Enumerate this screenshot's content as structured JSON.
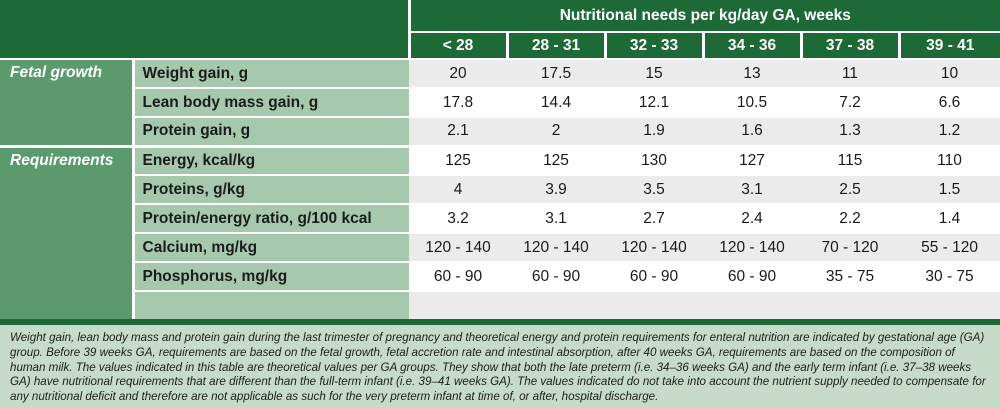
{
  "header": {
    "title": "Nutritional needs per kg/day GA, weeks",
    "columns": [
      "< 28",
      "28 - 31",
      "32 - 33",
      "34 - 36",
      "37 - 38",
      "39 - 41"
    ]
  },
  "groups": {
    "fetal": "Fetal growth",
    "requirements": "Requirements"
  },
  "rows": [
    {
      "label": "Weight gain, g",
      "values": [
        "20",
        "17.5",
        "15",
        "13",
        "11",
        "10"
      ]
    },
    {
      "label": "Lean body mass gain, g",
      "values": [
        "17.8",
        "14.4",
        "12.1",
        "10.5",
        "7.2",
        "6.6"
      ]
    },
    {
      "label": "Protein gain, g",
      "values": [
        "2.1",
        "2",
        "1.9",
        "1.6",
        "1.3",
        "1.2"
      ]
    },
    {
      "label": "Energy, kcal/kg",
      "values": [
        "125",
        "125",
        "130",
        "127",
        "115",
        "110"
      ]
    },
    {
      "label": "Proteins, g/kg",
      "values": [
        "4",
        "3.9",
        "3.5",
        "3.1",
        "2.5",
        "1.5"
      ]
    },
    {
      "label": "Protein/energy ratio, g/100 kcal",
      "values": [
        "3.2",
        "3.1",
        "2.7",
        "2.4",
        "2.2",
        "1.4"
      ]
    },
    {
      "label": "Calcium, mg/kg",
      "values": [
        "120 - 140",
        "120 - 140",
        "120 - 140",
        "120 - 140",
        "70 - 120",
        "55 - 120"
      ]
    },
    {
      "label": "Phosphorus, mg/kg",
      "values": [
        "60 - 90",
        "60 - 90",
        "60 - 90",
        "60 - 90",
        "35 - 75",
        "30 - 75"
      ]
    }
  ],
  "footnote": "Weight gain, lean body mass and protein gain during the last trimester of pregnancy and theoretical energy and protein requirements for enteral nutrition are indicated by gestational age (GA) group. Before 39 weeks GA, requirements are based on the fetal growth, fetal accretion rate and intestinal absorption, after 40 weeks GA, requirements are based on the composition of human milk. The values indicated in this table are theoretical values per GA groups. They show that both the late preterm (i.e. 34–36 weeks GA) and the early term infant (i.e. 37–38 weeks GA) have nutritional requirements that are different than the full-term infant (i.e. 39–41 weeks GA). The values indicated do not take into account the nutrient supply needed to compensate for any nutritional deficit and therefore are not applicable as such for the very preterm infant at time of, or after, hospital discharge.",
  "colors": {
    "dark_green": "#1d6a37",
    "mid_green": "#5a9a6c",
    "light_green": "#a6c9ae",
    "note_bg": "#c6dbc9",
    "row_alt": "#ebebeb"
  }
}
